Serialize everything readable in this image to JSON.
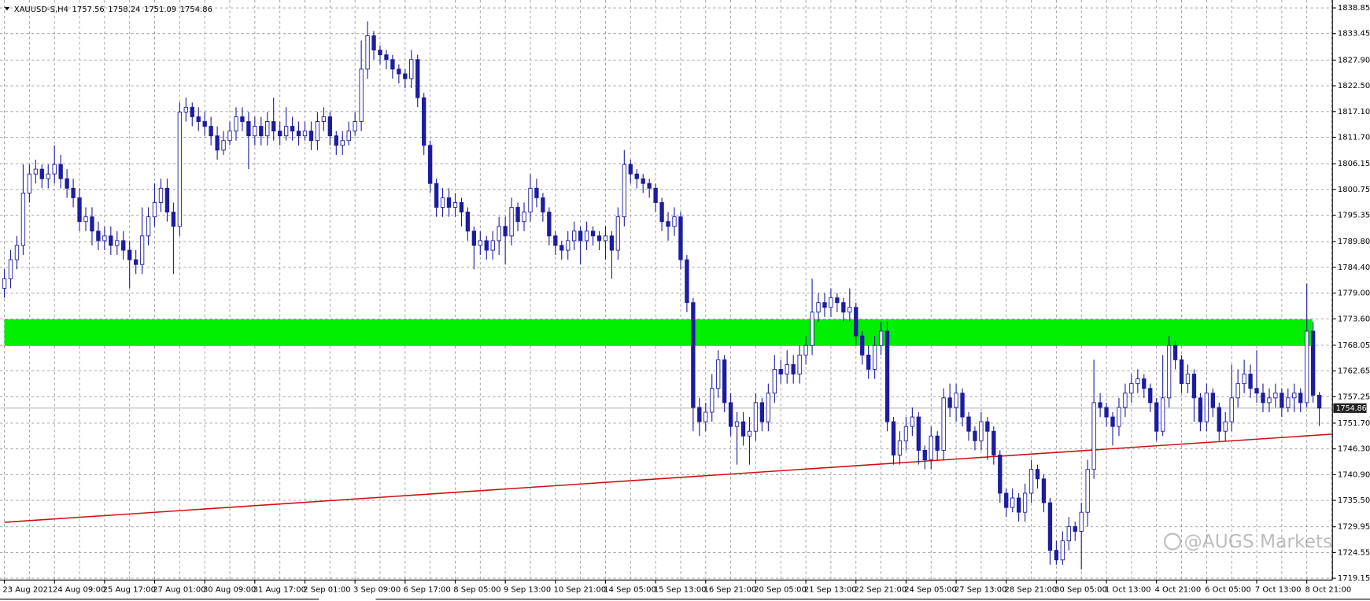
{
  "chart_data": {
    "type": "candlestick",
    "title": "XAUUSD-S,H4",
    "watermark": "@AUGS Markets",
    "categories": [
      "23 Aug 2021",
      null,
      null,
      null,
      null,
      null,
      null,
      null,
      "24 Aug 09:00",
      null,
      null,
      null,
      null,
      null,
      null,
      null,
      "25 Aug 17:00",
      null,
      null,
      null,
      null,
      null,
      null,
      null,
      "27 Aug 01:00",
      null,
      null,
      null,
      null,
      null,
      null,
      null,
      "30 Aug 09:00",
      null,
      null,
      null,
      null,
      null,
      null,
      null,
      "31 Aug 17:00",
      null,
      null,
      null,
      null,
      null,
      null,
      null,
      "2 Sep 01:00",
      null,
      null,
      null,
      null,
      null,
      null,
      null,
      "3 Sep 09:00",
      null,
      null,
      null,
      null,
      null,
      null,
      null,
      "6 Sep 17:00",
      null,
      null,
      null,
      null,
      null,
      null,
      null,
      "8 Sep 05:00",
      null,
      null,
      null,
      null,
      null,
      null,
      null,
      "9 Sep 13:00",
      null,
      null,
      null,
      null,
      null,
      null,
      null,
      "10 Sep 21:00",
      null,
      null,
      null,
      null,
      null,
      null,
      null,
      "14 Sep 05:00",
      null,
      null,
      null,
      null,
      null,
      null,
      null,
      "15 Sep 13:00",
      null,
      null,
      null,
      null,
      null,
      null,
      null,
      "16 Sep 21:00",
      null,
      null,
      null,
      null,
      null,
      null,
      null,
      "20 Sep 05:00",
      null,
      null,
      null,
      null,
      null,
      null,
      null,
      "21 Sep 13:00",
      null,
      null,
      null,
      null,
      null,
      null,
      null,
      "22 Sep 21:00",
      null,
      null,
      null,
      null,
      null,
      null,
      null,
      "24 Sep 05:00",
      null,
      null,
      null,
      null,
      null,
      null,
      null,
      "27 Sep 13:00",
      null,
      null,
      null,
      null,
      null,
      null,
      null,
      "28 Sep 21:00",
      null,
      null,
      null,
      null,
      null,
      null,
      null,
      "30 Sep 05:00",
      null,
      null,
      null,
      null,
      null,
      null,
      null,
      "1 Oct 13:00",
      null,
      null,
      null,
      null,
      null,
      null,
      null,
      "4 Oct 21:00",
      null,
      null,
      null,
      null,
      null,
      null,
      null,
      "6 Oct 05:00",
      null,
      null,
      null,
      null,
      null,
      null,
      null,
      "7 Oct 13:00",
      null,
      null,
      null,
      null,
      null,
      null,
      null,
      "8 Oct 21:00",
      null,
      null
    ],
    "open": [
      1780,
      1782,
      1786,
      1789,
      1800,
      1804,
      1805,
      1803,
      1804,
      1806,
      1803,
      1801,
      1799,
      1794,
      1795,
      1792,
      1790,
      1791,
      1789,
      1790,
      1788,
      1786,
      1785,
      1791,
      1795,
      1798,
      1801,
      1796,
      1793,
      1817,
      1818,
      1816,
      1815,
      1814,
      1812,
      1809,
      1811,
      1813,
      1816,
      1815,
      1812,
      1814,
      1812,
      1815,
      1813,
      1812,
      1814,
      1813,
      1812,
      1813,
      1811,
      1815,
      1816,
      1812,
      1810,
      1811,
      1813,
      1815,
      1826,
      1833,
      1830,
      1829,
      1828,
      1826,
      1825,
      1824,
      1828,
      1820,
      1810,
      1802,
      1797,
      1799,
      1797,
      1798,
      1796,
      1792,
      1789,
      1790,
      1788,
      1790,
      1793,
      1791,
      1797,
      1794,
      1796,
      1801,
      1799,
      1796,
      1791,
      1789,
      1788,
      1790,
      1792,
      1790,
      1792,
      1791,
      1790,
      1791,
      1788,
      1795,
      1806,
      1804,
      1803,
      1802,
      1801,
      1798,
      1794,
      1793,
      1795,
      1786,
      1777,
      1755,
      1752,
      1754,
      1759,
      1765,
      1756,
      1751,
      1752,
      1749,
      1750,
      1756,
      1752,
      1758,
      1763,
      1762,
      1764,
      1762,
      1766,
      1768,
      1775,
      1777,
      1776,
      1778,
      1777,
      1775,
      1776,
      1770,
      1766,
      1763,
      1768,
      1771,
      1752,
      1745,
      1748,
      1751,
      1753,
      1746,
      1744,
      1749,
      1746,
      1757,
      1755,
      1758,
      1753,
      1750,
      1748,
      1752,
      1750,
      1745,
      1737,
      1734,
      1736,
      1733,
      1737,
      1742,
      1740,
      1735,
      1725,
      1723,
      1727,
      1730,
      1729,
      1733,
      1742,
      1756,
      1755,
      1753,
      1751,
      1755,
      1758,
      1760,
      1761,
      1759,
      1756,
      1750,
      1757,
      1768,
      1765,
      1760,
      1762,
      1757,
      1752,
      1758,
      1755,
      1750,
      1752,
      1757,
      1760,
      1762,
      1759,
      1758,
      1756,
      1757,
      1758,
      1755,
      1757,
      1758,
      1756,
      1771,
      1757.56
    ],
    "high": [
      1784,
      1788,
      1791,
      1806,
      1806,
      1807,
      1806,
      1806,
      1810,
      1808,
      1805,
      1803,
      1801,
      1797,
      1797,
      1794,
      1793,
      1793,
      1792,
      1792,
      1790,
      1788,
      1797,
      1797,
      1802,
      1803,
      1803,
      1798,
      1819,
      1820,
      1819,
      1818,
      1817,
      1816,
      1814,
      1813,
      1815,
      1818,
      1818,
      1817,
      1816,
      1816,
      1817,
      1820,
      1815,
      1818,
      1816,
      1815,
      1815,
      1815,
      1817,
      1818,
      1817,
      1813,
      1813,
      1815,
      1817,
      1832,
      1836,
      1834,
      1831,
      1830,
      1829,
      1827,
      1826,
      1830,
      1829,
      1821,
      1811,
      1803,
      1801,
      1801,
      1800,
      1799,
      1797,
      1793,
      1792,
      1791,
      1792,
      1795,
      1795,
      1799,
      1798,
      1798,
      1804,
      1803,
      1800,
      1797,
      1792,
      1790,
      1792,
      1794,
      1793,
      1794,
      1793,
      1792,
      1793,
      1792,
      1797,
      1809,
      1807,
      1805,
      1804,
      1803,
      1802,
      1799,
      1796,
      1797,
      1796,
      1787,
      1778,
      1757,
      1756,
      1762,
      1767,
      1766,
      1758,
      1754,
      1754,
      1753,
      1758,
      1757,
      1760,
      1766,
      1765,
      1767,
      1766,
      1768,
      1770,
      1782,
      1779,
      1779,
      1780,
      1779,
      1778,
      1780,
      1777,
      1771,
      1768,
      1770,
      1773,
      1773,
      1753,
      1750,
      1753,
      1755,
      1754,
      1747,
      1751,
      1750,
      1759,
      1760,
      1760,
      1759,
      1754,
      1751,
      1754,
      1753,
      1751,
      1746,
      1738,
      1738,
      1737,
      1739,
      1744,
      1743,
      1741,
      1736,
      1727,
      1729,
      1732,
      1731,
      1735,
      1744,
      1765,
      1758,
      1756,
      1754,
      1757,
      1760,
      1762,
      1763,
      1762,
      1760,
      1757,
      1766,
      1770,
      1769,
      1766,
      1764,
      1763,
      1758,
      1760,
      1759,
      1756,
      1754,
      1764,
      1763,
      1765,
      1764,
      1767,
      1760,
      1759,
      1760,
      1759,
      1759,
      1760,
      1759,
      1781,
      1773,
      1758.24
    ],
    "low": [
      1778,
      1780,
      1784,
      1787,
      1798,
      1802,
      1801,
      1801,
      1802,
      1801,
      1799,
      1797,
      1792,
      1792,
      1789,
      1788,
      1788,
      1787,
      1787,
      1786,
      1780,
      1783,
      1783,
      1789,
      1793,
      1796,
      1794,
      1783,
      1791,
      1815,
      1814,
      1813,
      1812,
      1810,
      1807,
      1808,
      1810,
      1811,
      1813,
      1805,
      1810,
      1810,
      1810,
      1811,
      1810,
      1811,
      1811,
      1810,
      1811,
      1809,
      1809,
      1813,
      1810,
      1808,
      1808,
      1810,
      1812,
      1813,
      1824,
      1828,
      1827,
      1826,
      1824,
      1823,
      1822,
      1822,
      1818,
      1808,
      1800,
      1795,
      1795,
      1795,
      1795,
      1793,
      1790,
      1784,
      1787,
      1786,
      1786,
      1787,
      1785,
      1789,
      1792,
      1792,
      1794,
      1797,
      1794,
      1789,
      1787,
      1786,
      1786,
      1788,
      1785,
      1788,
      1789,
      1788,
      1786,
      1782,
      1786,
      1793,
      1802,
      1801,
      1800,
      1799,
      1796,
      1792,
      1790,
      1791,
      1784,
      1775,
      1750,
      1749,
      1750,
      1752,
      1757,
      1754,
      1749,
      1743,
      1747,
      1743,
      1748,
      1750,
      1750,
      1756,
      1760,
      1760,
      1760,
      1760,
      1764,
      1766,
      1773,
      1774,
      1774,
      1775,
      1773,
      1773,
      1768,
      1764,
      1761,
      1761,
      1766,
      1750,
      1743,
      1743,
      1746,
      1749,
      1743,
      1742,
      1742,
      1744,
      1744,
      1753,
      1752,
      1751,
      1748,
      1746,
      1746,
      1744,
      1743,
      1735,
      1732,
      1733,
      1731,
      1731,
      1735,
      1738,
      1733,
      1722,
      1722,
      1722,
      1725,
      1727,
      1721,
      1730,
      1740,
      1753,
      1751,
      1747,
      1749,
      1753,
      1756,
      1758,
      1757,
      1754,
      1748,
      1749,
      1755,
      1763,
      1758,
      1758,
      1752,
      1750,
      1750,
      1753,
      1748,
      1748,
      1750,
      1755,
      1758,
      1757,
      1756,
      1754,
      1754,
      1755,
      1753,
      1754,
      1754,
      1754,
      1755,
      1756,
      1751.09
    ],
    "close": [
      1782,
      1786,
      1789,
      1800,
      1804,
      1805,
      1803,
      1804,
      1806,
      1803,
      1801,
      1799,
      1794,
      1795,
      1792,
      1790,
      1791,
      1789,
      1790,
      1788,
      1786,
      1785,
      1791,
      1795,
      1798,
      1801,
      1796,
      1793,
      1817,
      1818,
      1816,
      1815,
      1814,
      1812,
      1809,
      1811,
      1813,
      1816,
      1815,
      1812,
      1814,
      1812,
      1815,
      1813,
      1812,
      1814,
      1813,
      1812,
      1813,
      1811,
      1815,
      1816,
      1812,
      1810,
      1811,
      1813,
      1815,
      1826,
      1833,
      1830,
      1829,
      1828,
      1826,
      1825,
      1824,
      1828,
      1820,
      1810,
      1802,
      1797,
      1799,
      1797,
      1798,
      1796,
      1792,
      1789,
      1790,
      1788,
      1790,
      1793,
      1791,
      1797,
      1794,
      1796,
      1801,
      1799,
      1796,
      1791,
      1789,
      1788,
      1790,
      1792,
      1790,
      1792,
      1791,
      1790,
      1791,
      1788,
      1795,
      1806,
      1804,
      1803,
      1802,
      1801,
      1798,
      1794,
      1793,
      1795,
      1786,
      1777,
      1755,
      1752,
      1754,
      1759,
      1765,
      1756,
      1751,
      1752,
      1749,
      1750,
      1756,
      1752,
      1758,
      1763,
      1762,
      1764,
      1762,
      1766,
      1768,
      1775,
      1777,
      1776,
      1778,
      1777,
      1775,
      1776,
      1770,
      1766,
      1763,
      1768,
      1771,
      1752,
      1745,
      1748,
      1751,
      1753,
      1746,
      1744,
      1749,
      1746,
      1757,
      1755,
      1758,
      1753,
      1750,
      1748,
      1752,
      1750,
      1745,
      1737,
      1734,
      1736,
      1733,
      1737,
      1742,
      1740,
      1735,
      1725,
      1723,
      1727,
      1730,
      1729,
      1733,
      1742,
      1756,
      1755,
      1753,
      1751,
      1755,
      1758,
      1760,
      1761,
      1759,
      1756,
      1750,
      1757,
      1768,
      1765,
      1760,
      1762,
      1757,
      1752,
      1758,
      1755,
      1750,
      1752,
      1757,
      1760,
      1762,
      1759,
      1758,
      1756,
      1757,
      1758,
      1755,
      1757,
      1758,
      1756,
      1771,
      1757.56,
      1754.86
    ],
    "ylim": [
      1719.15,
      1838.85
    ],
    "yticks": [
      1838.85,
      1833.45,
      {
        "value": 1827.9,
        "label": "1827.90"
      },
      {
        "value": 1822.5,
        "label": "1822.50"
      },
      {
        "value": 1817.1,
        "label": "1817.10"
      },
      {
        "value": 1811.7,
        "label": "1811.70"
      },
      1806.15,
      1800.75,
      1795.35,
      {
        "value": 1789.8,
        "label": "1789.80"
      },
      {
        "value": 1784.4,
        "label": "1784.40"
      },
      {
        "value": 1779,
        "label": "1779.00"
      },
      {
        "value": 1773.6,
        "label": "1773.60"
      },
      1768.05,
      1762.65,
      1757.25,
      {
        "value": 1751.7,
        "label": "1751.70"
      },
      {
        "value": 1746.3,
        "label": "1746.30"
      },
      {
        "value": 1740.9,
        "label": "1740.90"
      },
      {
        "value": 1735.5,
        "label": "1735.50"
      },
      1729.95,
      1724.55,
      1719.15
    ],
    "grid": true,
    "up_color": "#ffffff",
    "down_color": "#1c1ca0",
    "outline_color": "#1c1ca0",
    "zone": [
      1767.9,
      1773.5
    ],
    "zone_color": "#00ee00",
    "trendline": [
      1730.9,
      1749.4
    ],
    "trendline_color": "#cc1111"
  }
}
